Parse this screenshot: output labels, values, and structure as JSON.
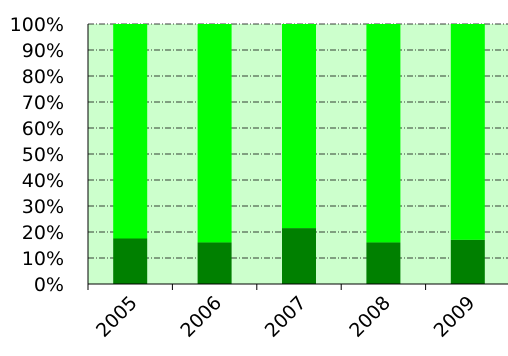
{
  "colors": {
    "plot_background": "#ccffcc",
    "bar_bottom": "#008000",
    "bar_top": "#00ff00",
    "gridline": "#000000",
    "axis": "#000000"
  },
  "chart_data": {
    "type": "bar",
    "stacked": true,
    "normalized_percent": true,
    "categories": [
      "2005",
      "2006",
      "2007",
      "2008",
      "2009"
    ],
    "series": [
      {
        "color": "#008000",
        "values": [
          17.5,
          16,
          21.5,
          16,
          17
        ]
      },
      {
        "color": "#00ff00",
        "values": [
          82.5,
          84,
          78.5,
          84,
          83
        ]
      }
    ],
    "title": "",
    "xlabel": "",
    "ylabel": "",
    "ylim": [
      0,
      100
    ],
    "yticks": [
      "0%",
      "10%",
      "20%",
      "30%",
      "40%",
      "50%",
      "60%",
      "70%",
      "80%",
      "90%",
      "100%"
    ],
    "grid": "horizontal dash-dot",
    "legend": "none"
  }
}
